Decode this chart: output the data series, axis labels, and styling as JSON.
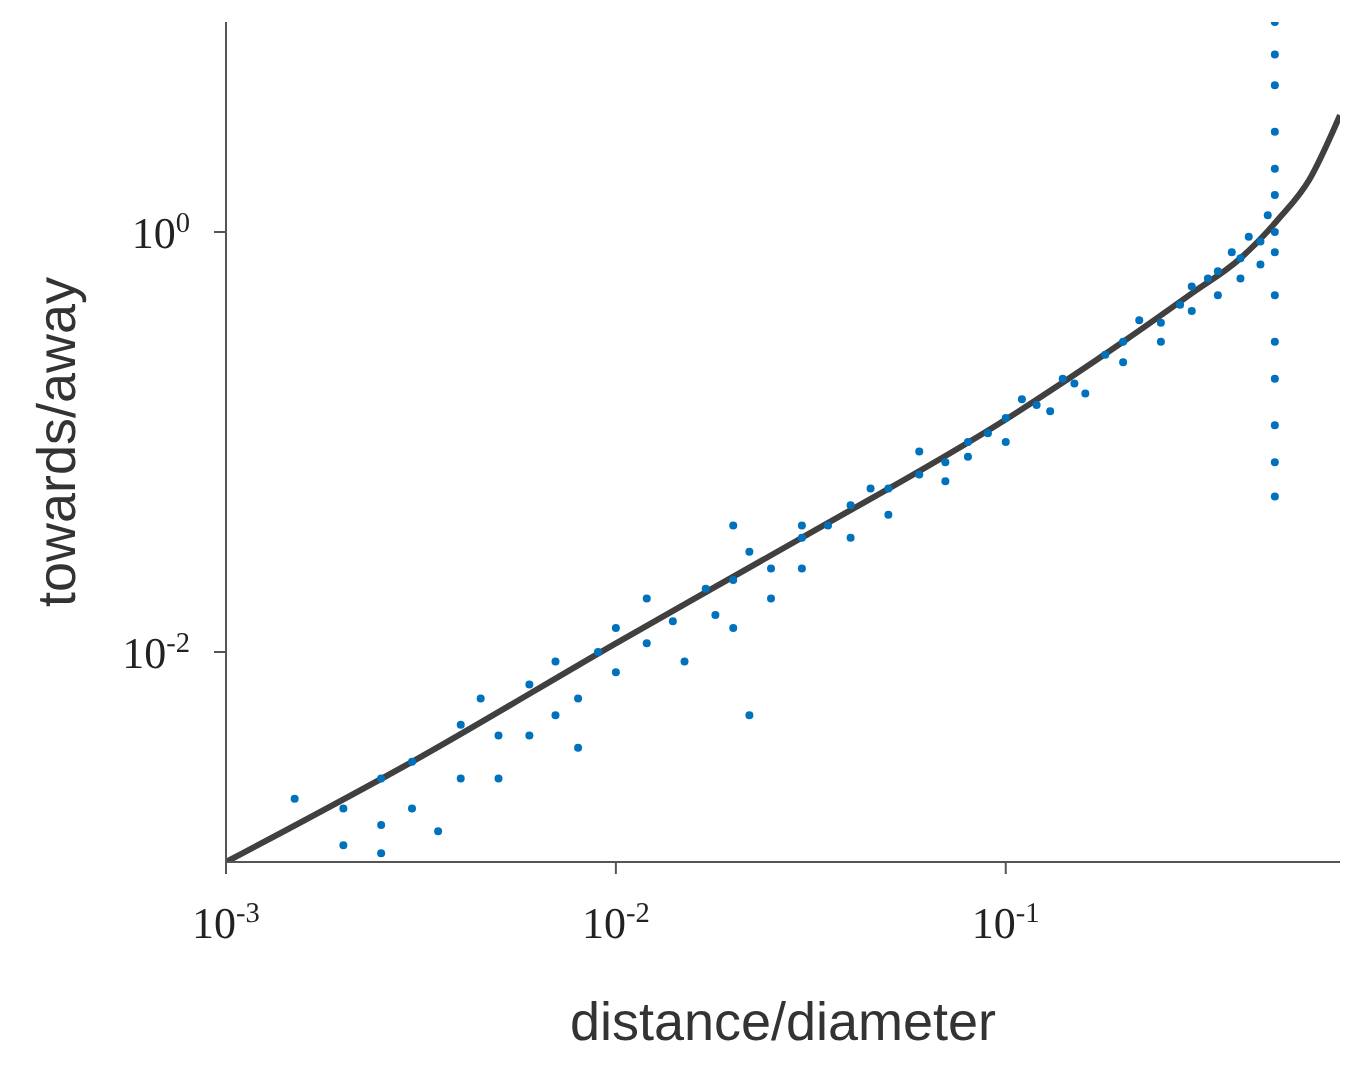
{
  "chart_data": {
    "type": "scatter",
    "xlabel": "distance/diameter",
    "ylabel": "towards/away",
    "log": "xy",
    "marker": "circle",
    "xlim": [
      0.001,
      0.72
    ],
    "ylim": [
      0.001,
      10
    ],
    "xticks": [
      {
        "value": 0.001,
        "label": "10$^{-3}$"
      },
      {
        "value": 0.01,
        "label": "10$^{-2}$"
      },
      {
        "value": 0.1,
        "label": "10$^{-1}$"
      }
    ],
    "yticks": [
      {
        "value": 0.01,
        "label": "10$^{-2}$"
      },
      {
        "value": 1,
        "label": "10$^{0}$"
      }
    ],
    "series": [
      {
        "type": "scatter",
        "color": "#0072bd",
        "x": [
          0.0015,
          0.002,
          0.002,
          0.0025,
          0.0025,
          0.0025,
          0.003,
          0.003,
          0.0035,
          0.004,
          0.004,
          0.0045,
          0.005,
          0.005,
          0.006,
          0.006,
          0.007,
          0.007,
          0.008,
          0.008,
          0.009,
          0.01,
          0.01,
          0.012,
          0.012,
          0.014,
          0.015,
          0.017,
          0.018,
          0.02,
          0.02,
          0.022,
          0.025,
          0.025,
          0.03,
          0.03,
          0.03,
          0.035,
          0.04,
          0.04,
          0.045,
          0.05,
          0.05,
          0.06,
          0.06,
          0.07,
          0.07,
          0.08,
          0.08,
          0.09,
          0.1,
          0.1,
          0.11,
          0.12,
          0.13,
          0.14,
          0.15,
          0.16,
          0.18,
          0.2,
          0.2,
          0.22,
          0.25,
          0.25,
          0.28,
          0.3,
          0.3,
          0.33,
          0.35,
          0.35,
          0.38,
          0.4,
          0.4,
          0.42,
          0.45,
          0.45,
          0.47,
          0.022,
          0.02,
          0.49,
          0.49,
          0.49,
          0.49,
          0.49,
          0.49,
          0.49,
          0.49,
          0.49,
          0.49,
          0.49,
          0.49,
          0.49,
          0.49
        ],
        "values": [
          0.002,
          0.0012,
          0.0018,
          0.0025,
          0.0015,
          0.0011,
          0.003,
          0.0018,
          0.0014,
          0.0045,
          0.0025,
          0.006,
          0.004,
          0.0025,
          0.007,
          0.004,
          0.005,
          0.009,
          0.006,
          0.0035,
          0.01,
          0.013,
          0.008,
          0.011,
          0.018,
          0.014,
          0.009,
          0.02,
          0.015,
          0.022,
          0.013,
          0.03,
          0.025,
          0.018,
          0.035,
          0.04,
          0.025,
          0.04,
          0.05,
          0.035,
          0.06,
          0.06,
          0.045,
          0.07,
          0.09,
          0.08,
          0.065,
          0.1,
          0.085,
          0.11,
          0.13,
          0.1,
          0.16,
          0.15,
          0.14,
          0.2,
          0.19,
          0.17,
          0.26,
          0.3,
          0.24,
          0.38,
          0.37,
          0.3,
          0.45,
          0.55,
          0.42,
          0.6,
          0.65,
          0.5,
          0.8,
          0.75,
          0.6,
          0.95,
          0.9,
          0.7,
          1.2,
          0.005,
          0.04,
          0.055,
          0.08,
          0.12,
          0.2,
          0.3,
          0.5,
          0.8,
          1,
          1.5,
          2,
          3,
          5,
          7,
          10
        ]
      },
      {
        "type": "line",
        "color": "#404040",
        "marker": "none",
        "x": [
          0.001,
          0.003,
          0.01,
          0.03,
          0.1,
          0.2,
          0.3,
          0.4,
          0.5,
          0.6,
          0.72
        ],
        "values": [
          0.001,
          0.003,
          0.011,
          0.035,
          0.128,
          0.3,
          0.51,
          0.75,
          1.15,
          1.77,
          3.6
        ]
      }
    ]
  }
}
